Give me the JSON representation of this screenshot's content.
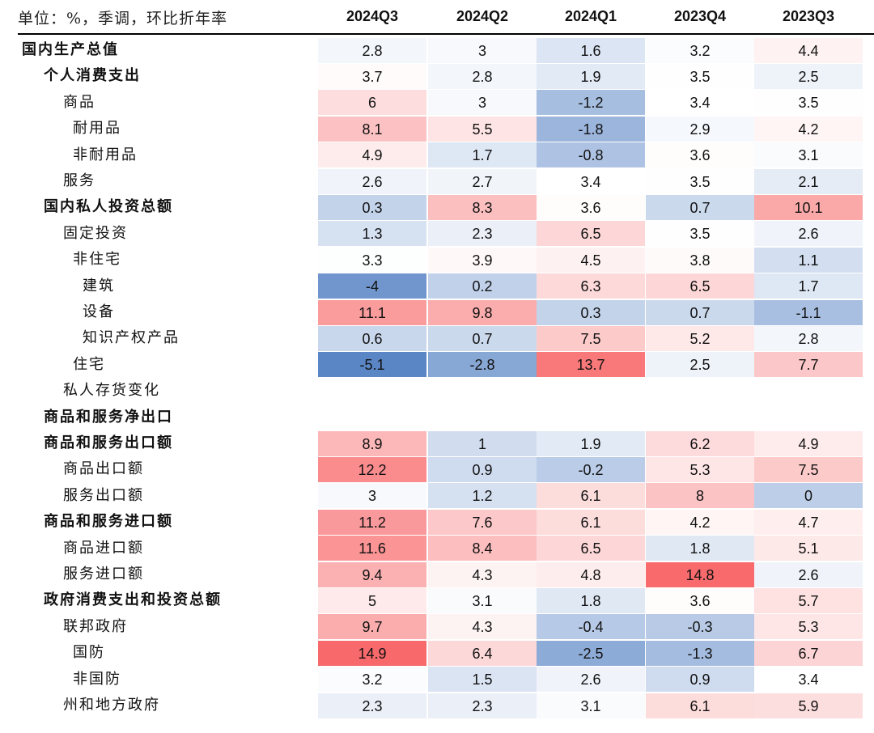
{
  "unit_label": "单位：%，季调，环比折年率",
  "chart_data": {
    "type": "heatmap",
    "columns": [
      "2024Q3",
      "2024Q2",
      "2024Q1",
      "2023Q4",
      "2023Q3"
    ],
    "rows": [
      {
        "label": "国内生产总值",
        "level": 0,
        "bold": true,
        "values": [
          "2.8",
          "3",
          "1.6",
          "3.2",
          "4.4"
        ]
      },
      {
        "label": "个人消费支出",
        "level": 1,
        "bold": true,
        "values": [
          "3.7",
          "2.8",
          "1.9",
          "3.5",
          "2.5"
        ]
      },
      {
        "label": "商品",
        "level": 2,
        "bold": false,
        "values": [
          "6",
          "3",
          "-1.2",
          "3.4",
          "3.5"
        ]
      },
      {
        "label": "耐用品",
        "level": 3,
        "bold": false,
        "values": [
          "8.1",
          "5.5",
          "-1.8",
          "2.9",
          "4.2"
        ]
      },
      {
        "label": "非耐用品",
        "level": 3,
        "bold": false,
        "values": [
          "4.9",
          "1.7",
          "-0.8",
          "3.6",
          "3.1"
        ]
      },
      {
        "label": "服务",
        "level": 2,
        "bold": false,
        "values": [
          "2.6",
          "2.7",
          "3.4",
          "3.5",
          "2.1"
        ]
      },
      {
        "label": "国内私人投资总额",
        "level": 1,
        "bold": true,
        "values": [
          "0.3",
          "8.3",
          "3.6",
          "0.7",
          "10.1"
        ]
      },
      {
        "label": "固定投资",
        "level": 2,
        "bold": false,
        "values": [
          "1.3",
          "2.3",
          "6.5",
          "3.5",
          "2.6"
        ]
      },
      {
        "label": "非住宅",
        "level": 3,
        "bold": false,
        "values": [
          "3.3",
          "3.9",
          "4.5",
          "3.8",
          "1.1"
        ]
      },
      {
        "label": "建筑",
        "level": 4,
        "bold": false,
        "values": [
          "-4",
          "0.2",
          "6.3",
          "6.5",
          "1.7"
        ]
      },
      {
        "label": "设备",
        "level": 4,
        "bold": false,
        "values": [
          "11.1",
          "9.8",
          "0.3",
          "0.7",
          "-1.1"
        ]
      },
      {
        "label": "知识产权产品",
        "level": 4,
        "bold": false,
        "values": [
          "0.6",
          "0.7",
          "7.5",
          "5.2",
          "2.8"
        ]
      },
      {
        "label": "住宅",
        "level": 3,
        "bold": false,
        "values": [
          "-5.1",
          "-2.8",
          "13.7",
          "2.5",
          "7.7"
        ]
      },
      {
        "label": "私人存货变化",
        "level": 2,
        "bold": false,
        "values": []
      },
      {
        "label": "商品和服务净出口",
        "level": 1,
        "bold": true,
        "values": []
      },
      {
        "label": "商品和服务出口额",
        "level": 1,
        "bold": true,
        "values": [
          "8.9",
          "1",
          "1.9",
          "6.2",
          "4.9"
        ]
      },
      {
        "label": "商品出口额",
        "level": 2,
        "bold": false,
        "values": [
          "12.2",
          "0.9",
          "-0.2",
          "5.3",
          "7.5"
        ]
      },
      {
        "label": "服务出口额",
        "level": 2,
        "bold": false,
        "values": [
          "3",
          "1.2",
          "6.1",
          "8",
          "0"
        ]
      },
      {
        "label": "商品和服务进口额",
        "level": 1,
        "bold": true,
        "values": [
          "11.2",
          "7.6",
          "6.1",
          "4.2",
          "4.7"
        ]
      },
      {
        "label": "商品进口额",
        "level": 2,
        "bold": false,
        "values": [
          "11.6",
          "8.4",
          "6.5",
          "1.8",
          "5.1"
        ]
      },
      {
        "label": "服务进口额",
        "level": 2,
        "bold": false,
        "values": [
          "9.4",
          "4.3",
          "4.8",
          "14.8",
          "2.6"
        ]
      },
      {
        "label": "政府消费支出和投资总额",
        "level": 1,
        "bold": true,
        "values": [
          "5",
          "3.1",
          "1.8",
          "3.6",
          "5.7"
        ]
      },
      {
        "label": "联邦政府",
        "level": 2,
        "bold": false,
        "values": [
          "9.7",
          "4.3",
          "-0.4",
          "-0.3",
          "5.3"
        ]
      },
      {
        "label": "国防",
        "level": 3,
        "bold": false,
        "values": [
          "14.9",
          "6.4",
          "-2.5",
          "-1.3",
          "6.7"
        ]
      },
      {
        "label": "非国防",
        "level": 3,
        "bold": false,
        "values": [
          "3.2",
          "1.5",
          "2.6",
          "0.9",
          "3.4"
        ]
      },
      {
        "label": "州和地方政府",
        "level": 2,
        "bold": false,
        "values": [
          "2.3",
          "2.3",
          "3.1",
          "6.1",
          "5.9"
        ]
      }
    ],
    "colors": {
      "low": "#5b86c6",
      "mid": "#ffffff",
      "high": "#f8696b"
    }
  }
}
